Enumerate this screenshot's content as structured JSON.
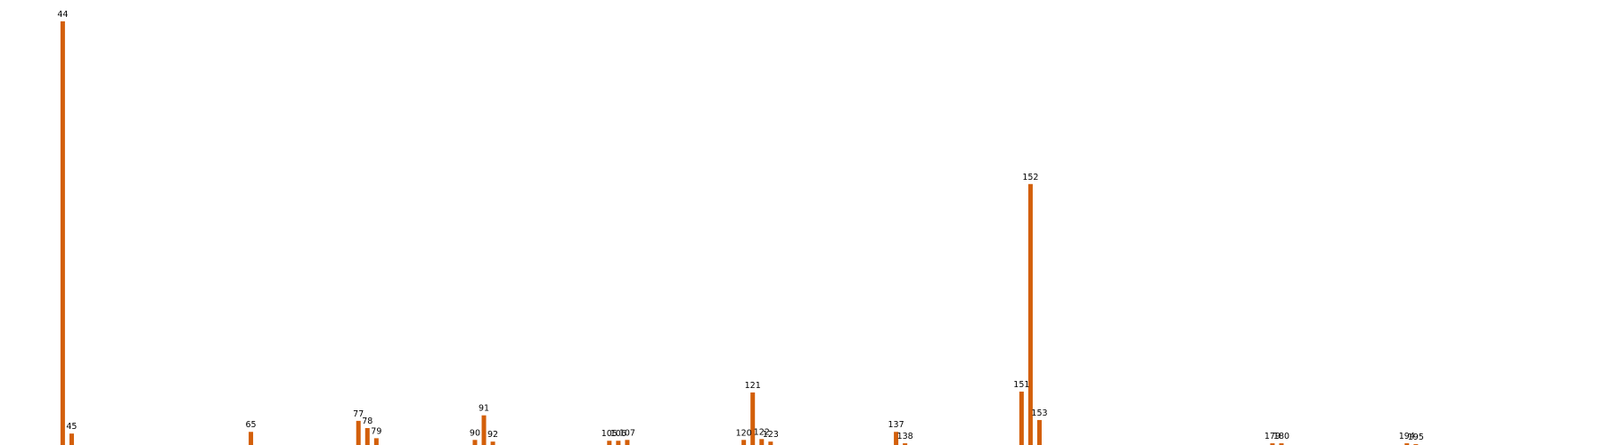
{
  "chart_data": {
    "type": "bar",
    "orientation": "vertical",
    "x_kind": "numeric",
    "xlim": [
      37,
      216
    ],
    "ylim": [
      0,
      100
    ],
    "grid": false,
    "show_axes": false,
    "colors": {
      "bar": "#d35f0a"
    },
    "points": [
      {
        "x": 44,
        "label": "44",
        "value": 100
      },
      {
        "x": 45,
        "label": "45",
        "value": 2.7
      },
      {
        "x": 65,
        "label": "65",
        "value": 3.1
      },
      {
        "x": 77,
        "label": "77",
        "value": 5.7
      },
      {
        "x": 78,
        "label": "78",
        "value": 4.0
      },
      {
        "x": 79,
        "label": "79",
        "value": 1.6
      },
      {
        "x": 90,
        "label": "90",
        "value": 1.2
      },
      {
        "x": 91,
        "label": "91",
        "value": 7.0
      },
      {
        "x": 92,
        "label": "92",
        "value": 0.8
      },
      {
        "x": 105,
        "label": "105",
        "value": 1.0
      },
      {
        "x": 106,
        "label": "106",
        "value": 1.0
      },
      {
        "x": 107,
        "label": "107",
        "value": 1.2
      },
      {
        "x": 120,
        "label": "120",
        "value": 1.2
      },
      {
        "x": 121,
        "label": "121",
        "value": 12.4
      },
      {
        "x": 122,
        "label": "122",
        "value": 1.4
      },
      {
        "x": 123,
        "label": "123",
        "value": 0.8
      },
      {
        "x": 137,
        "label": "137",
        "value": 3.1
      },
      {
        "x": 138,
        "label": "138",
        "value": 0.4
      },
      {
        "x": 151,
        "label": "151",
        "value": 12.6
      },
      {
        "x": 152,
        "label": "152",
        "value": 61.6
      },
      {
        "x": 153,
        "label": "153",
        "value": 5.9
      },
      {
        "x": 179,
        "label": "179",
        "value": 0.4
      },
      {
        "x": 180,
        "label": "180",
        "value": 0.4
      },
      {
        "x": 194,
        "label": "194",
        "value": 0.4
      },
      {
        "x": 195,
        "label": "195",
        "value": 0.2
      }
    ]
  }
}
